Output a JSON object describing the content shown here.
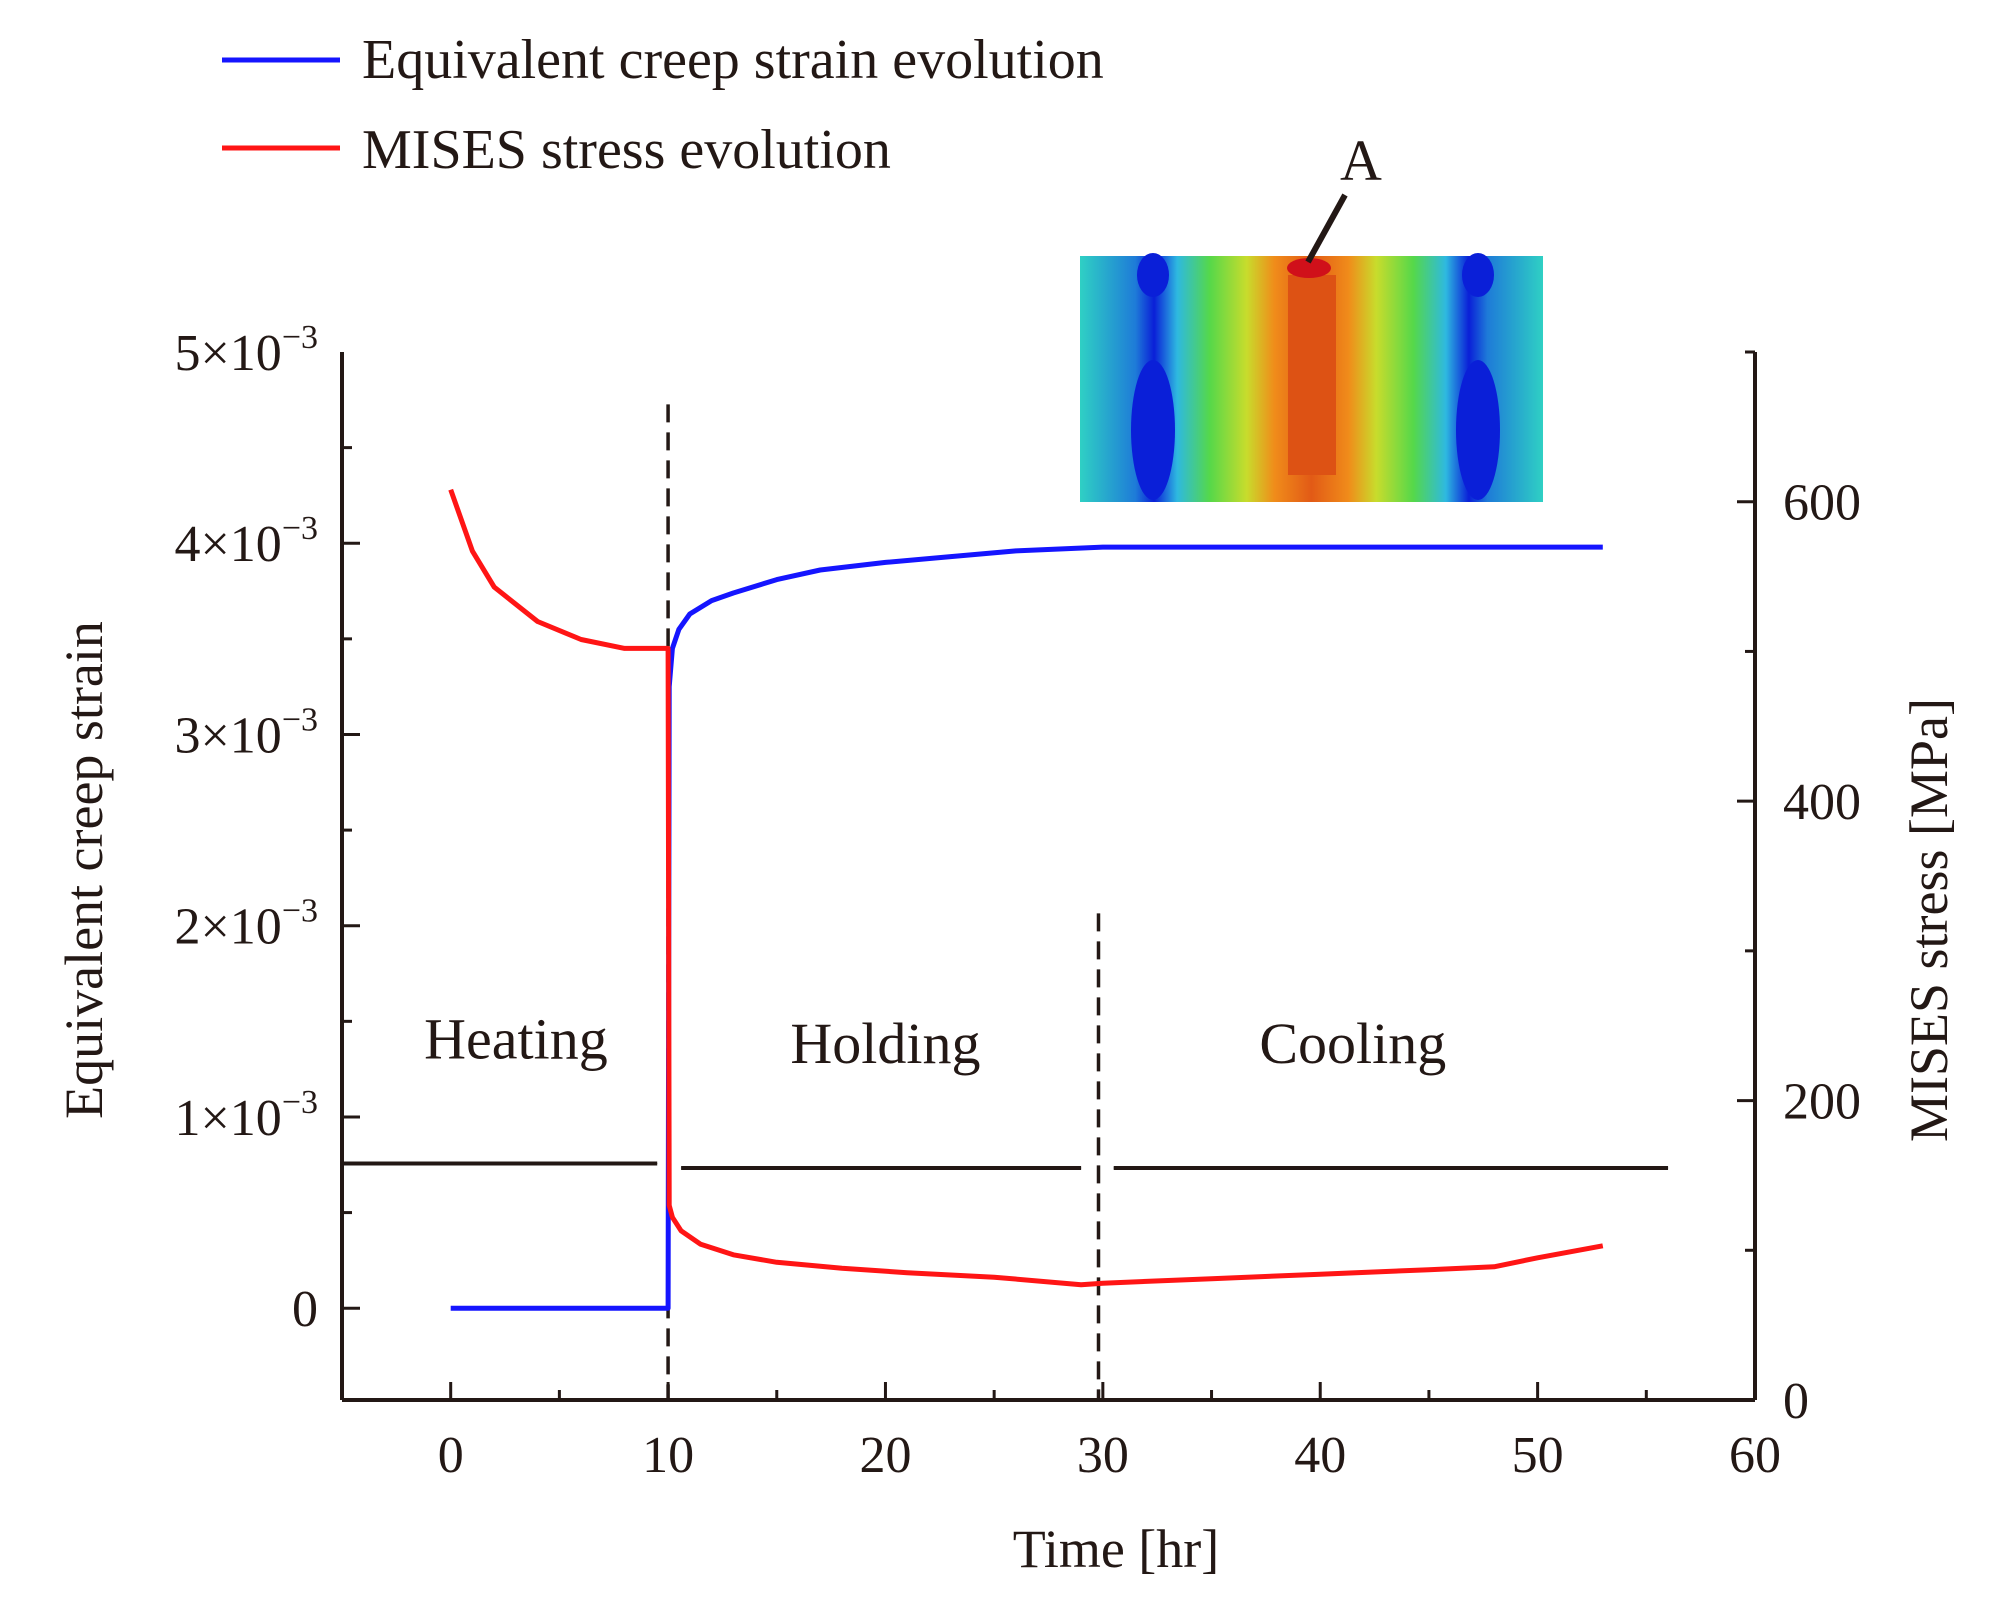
{
  "chart_data": {
    "type": "line",
    "title": "",
    "xlabel": "Time [hr]",
    "ylabel_left": "Equivalent creep strain",
    "ylabel_right": "MISES stress [MPa]",
    "xlim": [
      -5,
      60
    ],
    "ylim_left": [
      -0.00048,
      0.005
    ],
    "ylim_right": [
      0,
      700
    ],
    "x_ticks": [
      0,
      10,
      20,
      30,
      40,
      50,
      60
    ],
    "x_tick_labels": [
      "0",
      "10",
      "20",
      "30",
      "40",
      "50",
      "60"
    ],
    "y_left_ticks": [
      0,
      0.001,
      0.002,
      0.003,
      0.004,
      0.005
    ],
    "y_left_tick_labels": [
      {
        "base": "0",
        "exp": ""
      },
      {
        "base": "1×10",
        "exp": "−3"
      },
      {
        "base": "2×10",
        "exp": "−3"
      },
      {
        "base": "3×10",
        "exp": "−3"
      },
      {
        "base": "4×10",
        "exp": "−3"
      },
      {
        "base": "5×10",
        "exp": "−3"
      }
    ],
    "y_right_ticks": [
      0,
      200,
      400,
      600
    ],
    "y_right_tick_labels": [
      "0",
      "200",
      "400",
      "600"
    ],
    "series": [
      {
        "name": "Equivalent creep strain evolution",
        "axis": "left",
        "color": "#1515ff",
        "x": [
          0,
          5,
          10,
          10.05,
          10.2,
          10.5,
          11,
          12,
          13,
          15,
          17,
          20,
          23,
          26,
          30,
          35,
          40,
          45,
          50,
          53
        ],
        "y": [
          0,
          0,
          0,
          0.00325,
          0.00345,
          0.00355,
          0.00363,
          0.0037,
          0.00374,
          0.00381,
          0.00386,
          0.0039,
          0.00393,
          0.00396,
          0.00398,
          0.00398,
          0.00398,
          0.00398,
          0.00398,
          0.00398
        ]
      },
      {
        "name": "MISES stress evolution",
        "axis": "right",
        "color": "#ff1515",
        "x": [
          0,
          1,
          2,
          4,
          6,
          8,
          10,
          10.05,
          10.2,
          10.6,
          11.5,
          13,
          15,
          18,
          21,
          25,
          29,
          30,
          35,
          40,
          45,
          48,
          50,
          53
        ],
        "y": [
          608,
          567,
          543,
          520,
          508,
          502,
          502,
          130,
          122,
          113,
          104,
          97,
          92,
          88,
          85,
          82,
          77,
          78,
          81,
          84,
          87,
          89,
          95,
          103
        ]
      }
    ],
    "vertical_lines": [
      {
        "x": 10,
        "y_top_stress": 665
      },
      {
        "x": 29.8,
        "y_top_stress": 325
      }
    ],
    "phases": [
      {
        "label": "Heating",
        "x_start": -5,
        "x_end": 9.5,
        "label_x": 3,
        "arrow_stress": 158,
        "label_stress": 228
      },
      {
        "label": "Holding",
        "x_start": 10.6,
        "x_end": 29,
        "label_x": 20,
        "arrow_stress": 155,
        "label_stress": 225
      },
      {
        "label": "Cooling",
        "x_start": 30.5,
        "x_end": 56,
        "label_x": 41.5,
        "arrow_stress": 155,
        "label_stress": 225
      }
    ],
    "legend": {
      "position": "top-left",
      "entries": [
        {
          "label": "Equivalent creep strain evolution",
          "color": "#1515ff"
        },
        {
          "label": "MISES stress evolution",
          "color": "#ff1515"
        }
      ]
    },
    "annotation": {
      "label": "A",
      "description": "contour plot inset with arrow pointing to point A"
    },
    "colors": {
      "axis": "#231815",
      "text": "#231815"
    }
  }
}
